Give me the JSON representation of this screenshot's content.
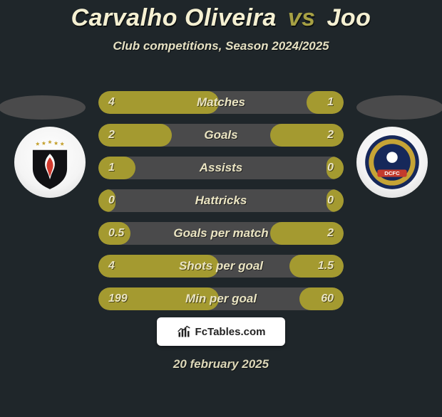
{
  "background_color": "#1f262a",
  "title": {
    "player1": "Carvalho Oliveira",
    "vs": "vs",
    "player2": "Joo",
    "color_players": "#f5f0d2",
    "color_vs": "#a7a144",
    "fontsize": 34
  },
  "subtitle": {
    "text": "Club competitions, Season 2024/2025",
    "color": "#e6e1c3",
    "fontsize": 17
  },
  "bar_colors": {
    "track": "#4a4a4b",
    "left_fill": "#a49a30",
    "right_fill": "#a49a30",
    "label_color": "#eae4c2",
    "value_color": "#eae4c2"
  },
  "stats": [
    {
      "label": "Matches",
      "left_val": "4",
      "right_val": "1",
      "left_pct": 49,
      "right_pct": 15
    },
    {
      "label": "Goals",
      "left_val": "2",
      "right_val": "2",
      "left_pct": 30,
      "right_pct": 30
    },
    {
      "label": "Assists",
      "left_val": "1",
      "right_val": "0",
      "left_pct": 15,
      "right_pct": 7
    },
    {
      "label": "Hattricks",
      "left_val": "0",
      "right_val": "0",
      "left_pct": 7,
      "right_pct": 7
    },
    {
      "label": "Goals per match",
      "left_val": "0.5",
      "right_val": "2",
      "left_pct": 13,
      "right_pct": 30
    },
    {
      "label": "Shots per goal",
      "left_val": "4",
      "right_val": "1.5",
      "left_pct": 49,
      "right_pct": 22
    },
    {
      "label": "Min per goal",
      "left_val": "199",
      "right_val": "60",
      "left_pct": 49,
      "right_pct": 18
    }
  ],
  "footer": {
    "brand": "FcTables.com",
    "date": "20 february 2025"
  },
  "badge_left": {
    "name": "Pohang Steelers",
    "shield_bg": "#111114",
    "flame_color": "#d33a2e",
    "flame_white": "#ffffff",
    "star_color": "#c6a436"
  },
  "badge_right": {
    "name": "DCFC",
    "ring_outer": "#16285a",
    "ring_gold": "#c6a436",
    "inner_bg": "#16285a",
    "ribbon": "#c43b2d"
  }
}
